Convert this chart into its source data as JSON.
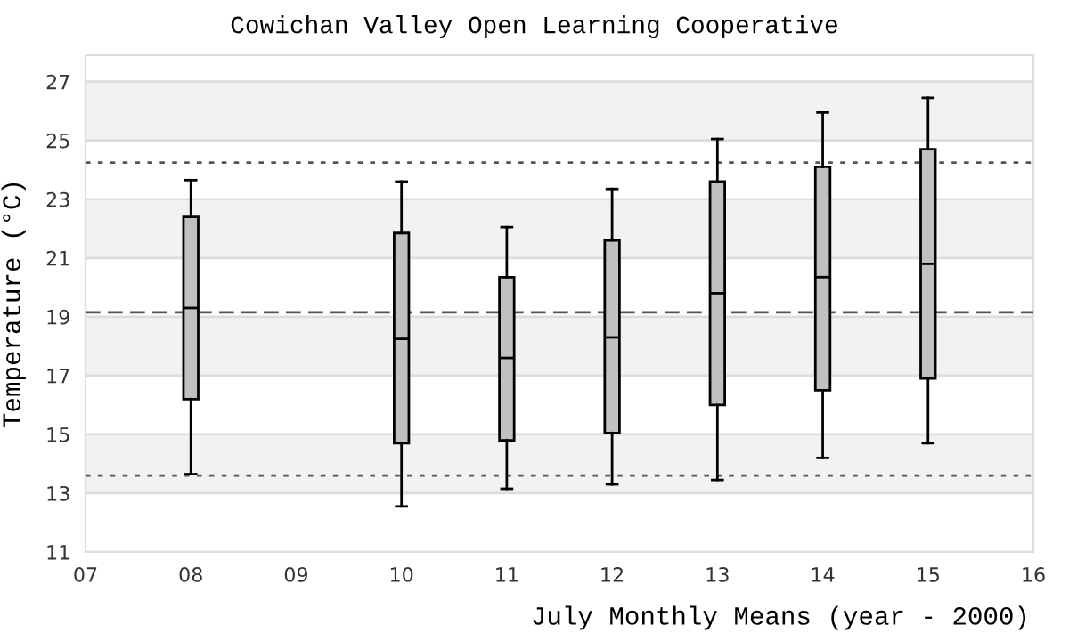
{
  "chart_data": {
    "type": "box",
    "title": "Cowichan Valley Open Learning Cooperative",
    "xlabel": "July Monthly Means (year - 2000)",
    "ylabel": "Temperature (°C)",
    "x": [
      8,
      10,
      11,
      12,
      13,
      14,
      15
    ],
    "series": [
      {
        "color": "#c0c0c0",
        "boxes": [
          {
            "low": 13.65,
            "q1": 16.2,
            "median": 19.3,
            "q3": 22.4,
            "high": 23.65
          },
          {
            "low": 12.55,
            "q1": 14.7,
            "median": 18.25,
            "q3": 21.85,
            "high": 23.6
          },
          {
            "low": 13.15,
            "q1": 14.8,
            "median": 17.6,
            "q3": 20.35,
            "high": 22.05
          },
          {
            "low": 13.3,
            "q1": 15.05,
            "median": 18.3,
            "q3": 21.6,
            "high": 23.35
          },
          {
            "low": 13.45,
            "q1": 16.0,
            "median": 19.8,
            "q3": 23.6,
            "high": 25.05
          },
          {
            "low": 14.2,
            "q1": 16.5,
            "median": 20.35,
            "q3": 24.1,
            "high": 25.95
          },
          {
            "low": 14.7,
            "q1": 16.9,
            "median": 20.8,
            "q3": 24.7,
            "high": 26.45
          }
        ]
      }
    ],
    "xlim": [
      7,
      16
    ],
    "xticks": [
      {
        "value": 7,
        "label": "07"
      },
      {
        "value": 8,
        "label": "08"
      },
      {
        "value": 9,
        "label": "09"
      },
      {
        "value": 10,
        "label": "10"
      },
      {
        "value": 11,
        "label": "11"
      },
      {
        "value": 12,
        "label": "12"
      },
      {
        "value": 13,
        "label": "13"
      },
      {
        "value": 14,
        "label": "14"
      },
      {
        "value": 15,
        "label": "15"
      },
      {
        "value": 16,
        "label": "16"
      }
    ],
    "ylim": [
      11,
      27.9
    ],
    "yticks": [
      11,
      13,
      15,
      17,
      19,
      21,
      23,
      25,
      27
    ],
    "grid": "y",
    "bands": [
      {
        "axis": "y",
        "from": 13,
        "to": 15,
        "color": "#f2f2f2"
      },
      {
        "axis": "y",
        "from": 17,
        "to": 19,
        "color": "#f2f2f2"
      },
      {
        "axis": "y",
        "from": 21,
        "to": 23,
        "color": "#f2f2f2"
      },
      {
        "axis": "y",
        "from": 25,
        "to": 27,
        "color": "#f2f2f2"
      }
    ],
    "ref_lines": [
      {
        "axis": "y",
        "value": 24.25,
        "line_style": "dotted",
        "color": "#555555"
      },
      {
        "axis": "y",
        "value": 19.15,
        "line_style": "dashed",
        "color": "#555555"
      },
      {
        "axis": "y",
        "value": 13.6,
        "line_style": "dotted",
        "color": "#555555"
      }
    ]
  }
}
